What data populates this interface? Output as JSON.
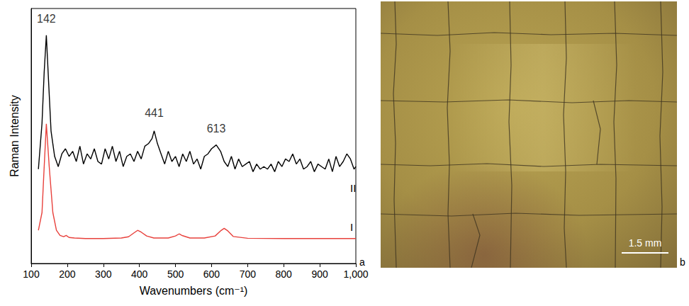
{
  "chart_data": {
    "type": "line",
    "panel_label": "a",
    "x_label": "Wavenumbers (cm⁻¹)",
    "y_label": "Raman Intensity",
    "xlim": [
      100,
      1000
    ],
    "xticks": [
      100,
      200,
      300,
      400,
      500,
      600,
      700,
      800,
      900,
      1000
    ],
    "ylim": [
      0,
      100
    ],
    "tick_labels": "x",
    "grid": false,
    "series": [
      {
        "name": "I",
        "color": "#e8413c",
        "x": [
          120,
          130,
          135,
          142,
          150,
          160,
          170,
          180,
          190,
          197,
          205,
          220,
          250,
          300,
          350,
          370,
          385,
          395,
          405,
          420,
          440,
          480,
          500,
          510,
          520,
          540,
          580,
          610,
          625,
          635,
          645,
          660,
          700,
          800,
          900,
          1000
        ],
        "values": [
          13,
          20,
          35,
          54.8,
          38,
          20,
          13,
          11,
          10.5,
          11,
          10.2,
          10,
          9.8,
          9.8,
          10,
          10.5,
          12,
          13,
          12.3,
          10.8,
          10,
          10,
          10.8,
          11.6,
          10.9,
          10,
          10,
          10.8,
          12.8,
          13.8,
          12.8,
          10.6,
          9.9,
          9.8,
          9.8,
          9.8
        ]
      },
      {
        "name": "II",
        "color": "#000000",
        "x": [
          120,
          130,
          136,
          142,
          148,
          155,
          165,
          175,
          185,
          195,
          205,
          215,
          225,
          235,
          245,
          255,
          265,
          275,
          285,
          295,
          305,
          315,
          325,
          335,
          345,
          355,
          365,
          375,
          385,
          395,
          405,
          415,
          425,
          435,
          441,
          450,
          460,
          470,
          480,
          490,
          500,
          510,
          520,
          530,
          540,
          550,
          560,
          570,
          580,
          590,
          600,
          613,
          625,
          635,
          645,
          655,
          665,
          675,
          685,
          695,
          705,
          715,
          725,
          735,
          745,
          755,
          765,
          775,
          785,
          795,
          805,
          815,
          825,
          835,
          845,
          855,
          865,
          875,
          885,
          895,
          905,
          915,
          925,
          935,
          945,
          955,
          965,
          975,
          985,
          995,
          1000
        ],
        "values": [
          37,
          55,
          75,
          89.5,
          72,
          52,
          42,
          38,
          43,
          45,
          42,
          44,
          40,
          46,
          39,
          43,
          41,
          45,
          40,
          39,
          45,
          41,
          46,
          40,
          44,
          38,
          42,
          43,
          40,
          44,
          41,
          46,
          47,
          49,
          52,
          47,
          43,
          39,
          44,
          40,
          42,
          38,
          43,
          40,
          44,
          39,
          41,
          37,
          42,
          43,
          45,
          46.5,
          44,
          40,
          38,
          42,
          37,
          41,
          38,
          39,
          40,
          36,
          39,
          37,
          38,
          37,
          39,
          36,
          40,
          38,
          41,
          40,
          43,
          39,
          41,
          37,
          38,
          40,
          36,
          39,
          38,
          37,
          41,
          36,
          42,
          38,
          40,
          43,
          41,
          37,
          38
        ]
      }
    ],
    "annotations": [
      {
        "text": "142",
        "x": 142,
        "y": 96
      },
      {
        "text": "441",
        "x": 441,
        "y": 59
      },
      {
        "text": "613",
        "x": 613,
        "y": 53
      }
    ]
  },
  "photo": {
    "panel_label": "b",
    "scale_bar_label": "1.5 mm"
  }
}
